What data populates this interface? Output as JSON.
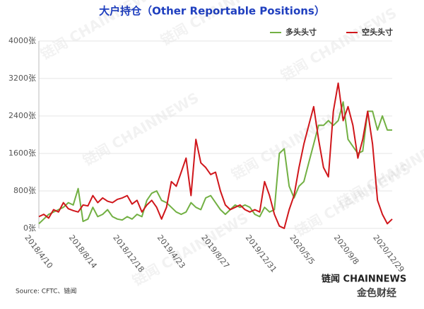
{
  "chart_data": {
    "type": "line",
    "title": "大户持仓（Other Reportable Positions）",
    "source": "Source: CFTC、链闻",
    "watermark": "链闻 CHAINNEWS",
    "logo": "链闻 CHAINNEWS",
    "logo_sub": "金色财经",
    "categories": [
      "2018/4/10",
      null,
      null,
      null,
      null,
      null,
      null,
      null,
      null,
      "2018/8/14",
      null,
      null,
      null,
      null,
      null,
      null,
      null,
      null,
      "2018/12/18",
      null,
      null,
      null,
      null,
      null,
      null,
      null,
      null,
      "2019/4/23",
      null,
      null,
      null,
      null,
      null,
      null,
      null,
      null,
      "2019/8/27",
      null,
      null,
      null,
      null,
      null,
      null,
      null,
      null,
      "2019/12/31",
      null,
      null,
      null,
      null,
      null,
      null,
      null,
      null,
      "2020/5/5",
      null,
      null,
      null,
      null,
      null,
      null,
      null,
      null,
      "2020/9/8",
      null,
      null,
      null,
      null,
      null,
      null,
      null,
      "2020/12/29",
      null
    ],
    "series": [
      {
        "name": "多头头寸",
        "color": "#72b043",
        "values": [
          100,
          200,
          300,
          350,
          400,
          450,
          550,
          500,
          850,
          150,
          200,
          450,
          250,
          300,
          400,
          250,
          200,
          180,
          250,
          200,
          300,
          250,
          600,
          750,
          800,
          600,
          550,
          450,
          350,
          300,
          350,
          550,
          450,
          400,
          650,
          700,
          550,
          400,
          300,
          400,
          500,
          450,
          500,
          450,
          300,
          250,
          450,
          350,
          400,
          1600,
          1700,
          900,
          650,
          900,
          1000,
          1400,
          1800,
          2200,
          2200,
          2300,
          2200,
          2300,
          2700,
          1900,
          1750,
          1600,
          1650,
          2500,
          2500,
          2100,
          2400,
          2100,
          2100
        ]
      },
      {
        "name": "空头头寸",
        "color": "#d0161b",
        "values": [
          250,
          300,
          220,
          400,
          350,
          550,
          420,
          380,
          350,
          500,
          480,
          700,
          550,
          650,
          580,
          550,
          620,
          650,
          700,
          520,
          600,
          350,
          500,
          600,
          450,
          200,
          450,
          1000,
          900,
          1200,
          1500,
          700,
          1900,
          1400,
          1300,
          1150,
          1200,
          800,
          500,
          400,
          450,
          500,
          400,
          350,
          400,
          350,
          1000,
          700,
          300,
          50,
          0,
          400,
          700,
          1300,
          1800,
          2200,
          2600,
          1900,
          1300,
          1100,
          2500,
          3100,
          2300,
          2600,
          2200,
          1500,
          1900,
          2500,
          1800,
          600,
          300,
          100,
          200
        ]
      }
    ],
    "ylim": [
      0,
      4000
    ],
    "yticks": [
      {
        "value": 0,
        "label": "0张"
      },
      {
        "value": 800,
        "label": "800张"
      },
      {
        "value": 1600,
        "label": "1600张"
      },
      {
        "value": 2400,
        "label": "2400张"
      },
      {
        "value": 3200,
        "label": "3200张"
      },
      {
        "value": 4000,
        "label": "4000张"
      }
    ],
    "grid": true,
    "legend": "top-right"
  }
}
